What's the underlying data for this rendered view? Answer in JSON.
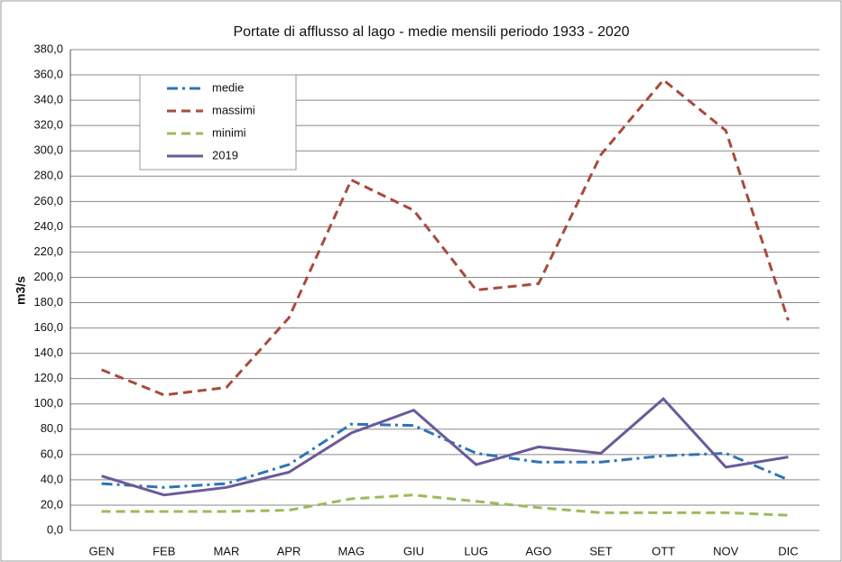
{
  "chart_data": {
    "type": "line",
    "title": "Portate di afflusso al lago -     medie mensili    periodo  1933 - 2020",
    "y_label": "m3/s",
    "categories": [
      "GEN",
      "FEB",
      "MAR",
      "APR",
      "MAG",
      "GIU",
      "LUG",
      "AGO",
      "SET",
      "OTT",
      "NOV",
      "DIC"
    ],
    "series": [
      {
        "name": "medie",
        "color": "#2e75b6",
        "dash": "dashdot",
        "values": [
          37,
          34,
          37,
          52,
          84,
          83,
          61,
          54,
          54,
          59,
          61,
          40
        ]
      },
      {
        "name": "massimi",
        "color": "#a94a3c",
        "dash": "dash",
        "values": [
          127,
          107,
          113,
          168,
          277,
          253,
          190,
          195,
          297,
          356,
          316,
          166
        ]
      },
      {
        "name": "minimi",
        "color": "#9bbb59",
        "dash": "dash",
        "values": [
          15,
          15,
          15,
          16,
          25,
          28,
          23,
          18,
          14,
          14,
          14,
          12
        ]
      },
      {
        "name": "2019",
        "color": "#6a5a9a",
        "dash": "solid",
        "values": [
          43,
          28,
          34,
          46,
          77,
          95,
          52,
          66,
          61,
          104,
          50,
          58
        ]
      }
    ],
    "ylim": [
      0,
      380
    ],
    "yticks": [
      {
        "value": 0,
        "label": "0,0"
      },
      {
        "value": 20,
        "label": "20,0"
      },
      {
        "value": 40,
        "label": "40,0"
      },
      {
        "value": 60,
        "label": "60,0"
      },
      {
        "value": 80,
        "label": "80,0"
      },
      {
        "value": 100,
        "label": "100,0"
      },
      {
        "value": 120,
        "label": "120,0"
      },
      {
        "value": 140,
        "label": "140,0"
      },
      {
        "value": 160,
        "label": "160,0"
      },
      {
        "value": 180,
        "label": "180,0"
      },
      {
        "value": 200,
        "label": "200,0"
      },
      {
        "value": 220,
        "label": "220,0"
      },
      {
        "value": 240,
        "label": "240,0"
      },
      {
        "value": 260,
        "label": "260,0"
      },
      {
        "value": 280,
        "label": "280,0"
      },
      {
        "value": 300,
        "label": "300,0"
      },
      {
        "value": 320,
        "label": "320,0"
      },
      {
        "value": 340,
        "label": "340,0"
      },
      {
        "value": 360,
        "label": "360,0"
      },
      {
        "value": 380,
        "label": "380,0"
      }
    ],
    "grid": true,
    "legend": "upper left"
  }
}
